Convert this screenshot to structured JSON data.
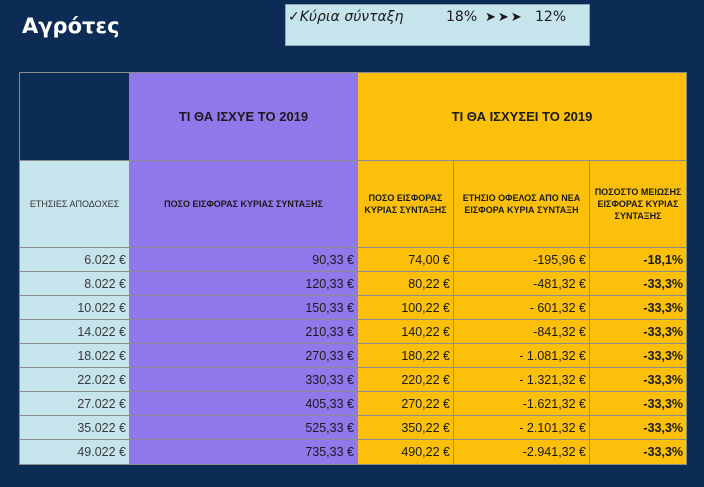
{
  "title": "Αγρότες",
  "banner": {
    "label": "✓Κύρια σύνταξη",
    "from": "18%",
    "arrows": "➤➤➤",
    "to": "12%"
  },
  "headers": {
    "group_2019": "ΤΙ ΘΑ ΙΣΧΥΕ ΤΟ 2019",
    "group_new": "ΤΙ ΘΑ ΙΣΧΥΣΕΙ ΤΟ 2019",
    "col_income": "ΕΤΗΣΙΕΣ ΑΠΟΔΟΧΕΣ",
    "col_old_contribution": "ΠΟΣΟ ΕΙΣΦΟΡΑΣ ΚΥΡΙΑΣ ΣΥΝΤΑΞΗΣ",
    "col_new_contribution": "ΠΟΣΟ ΕΙΣΦΟΡΑΣ ΚΥΡΙΑΣ ΣΥΝΤΑΞΗΣ",
    "col_annual_benefit": "ΕΤΗΣΙΟ ΟΦΕΛΟΣ ΑΠΟ ΝΕΑ ΕΙΣΦΟΡΑ ΚΥΡΙΑ ΣΥΝΤΑΞΗ",
    "col_reduction_pct": "ΠΟΣΟΣΤΟ ΜΕΙΩΣΗΣ ΕΙΣΦΟΡΑΣ ΚΥΡΙΑΣ ΣΥΝΤΑΞΗΣ"
  },
  "rows": [
    {
      "income": "6.022 €",
      "old": "90,33 €",
      "new": "74,00 €",
      "benefit": "-195,96 €",
      "pct": "-18,1%"
    },
    {
      "income": "8.022 €",
      "old": "120,33 €",
      "new": "80,22 €",
      "benefit": "-481,32 €",
      "pct": "-33,3%"
    },
    {
      "income": "10.022 €",
      "old": "150,33 €",
      "new": "100,22 €",
      "benefit": "- 601,32 €",
      "pct": "-33,3%"
    },
    {
      "income": "14.022 €",
      "old": "210,33 €",
      "new": "140,22 €",
      "benefit": "-841,32 €",
      "pct": "-33,3%"
    },
    {
      "income": "18.022 €",
      "old": "270,33 €",
      "new": "180,22 €",
      "benefit": "- 1.081,32 €",
      "pct": "-33,3%"
    },
    {
      "income": "22.022 €",
      "old": "330,33 €",
      "new": "220,22 €",
      "benefit": "- 1.321,32 €",
      "pct": "-33,3%"
    },
    {
      "income": "27.022 €",
      "old": "405,33 €",
      "new": "270,22 €",
      "benefit": "-1.621,32 €",
      "pct": "-33,3%"
    },
    {
      "income": "35.022 €",
      "old": "525,33 €",
      "new": "350,22 €",
      "benefit": "-  2.101,32 €",
      "pct": "-33,3%"
    },
    {
      "income": "49.022 €",
      "old": "735,33 €",
      "new": "490,22 €",
      "benefit": "-2.941,32 €",
      "pct": "-33,3%"
    }
  ],
  "colors": {
    "background": "#0c2c56",
    "purple": "#9178ea",
    "orange": "#fcc00a",
    "light_blue": "#c6e4ec"
  }
}
